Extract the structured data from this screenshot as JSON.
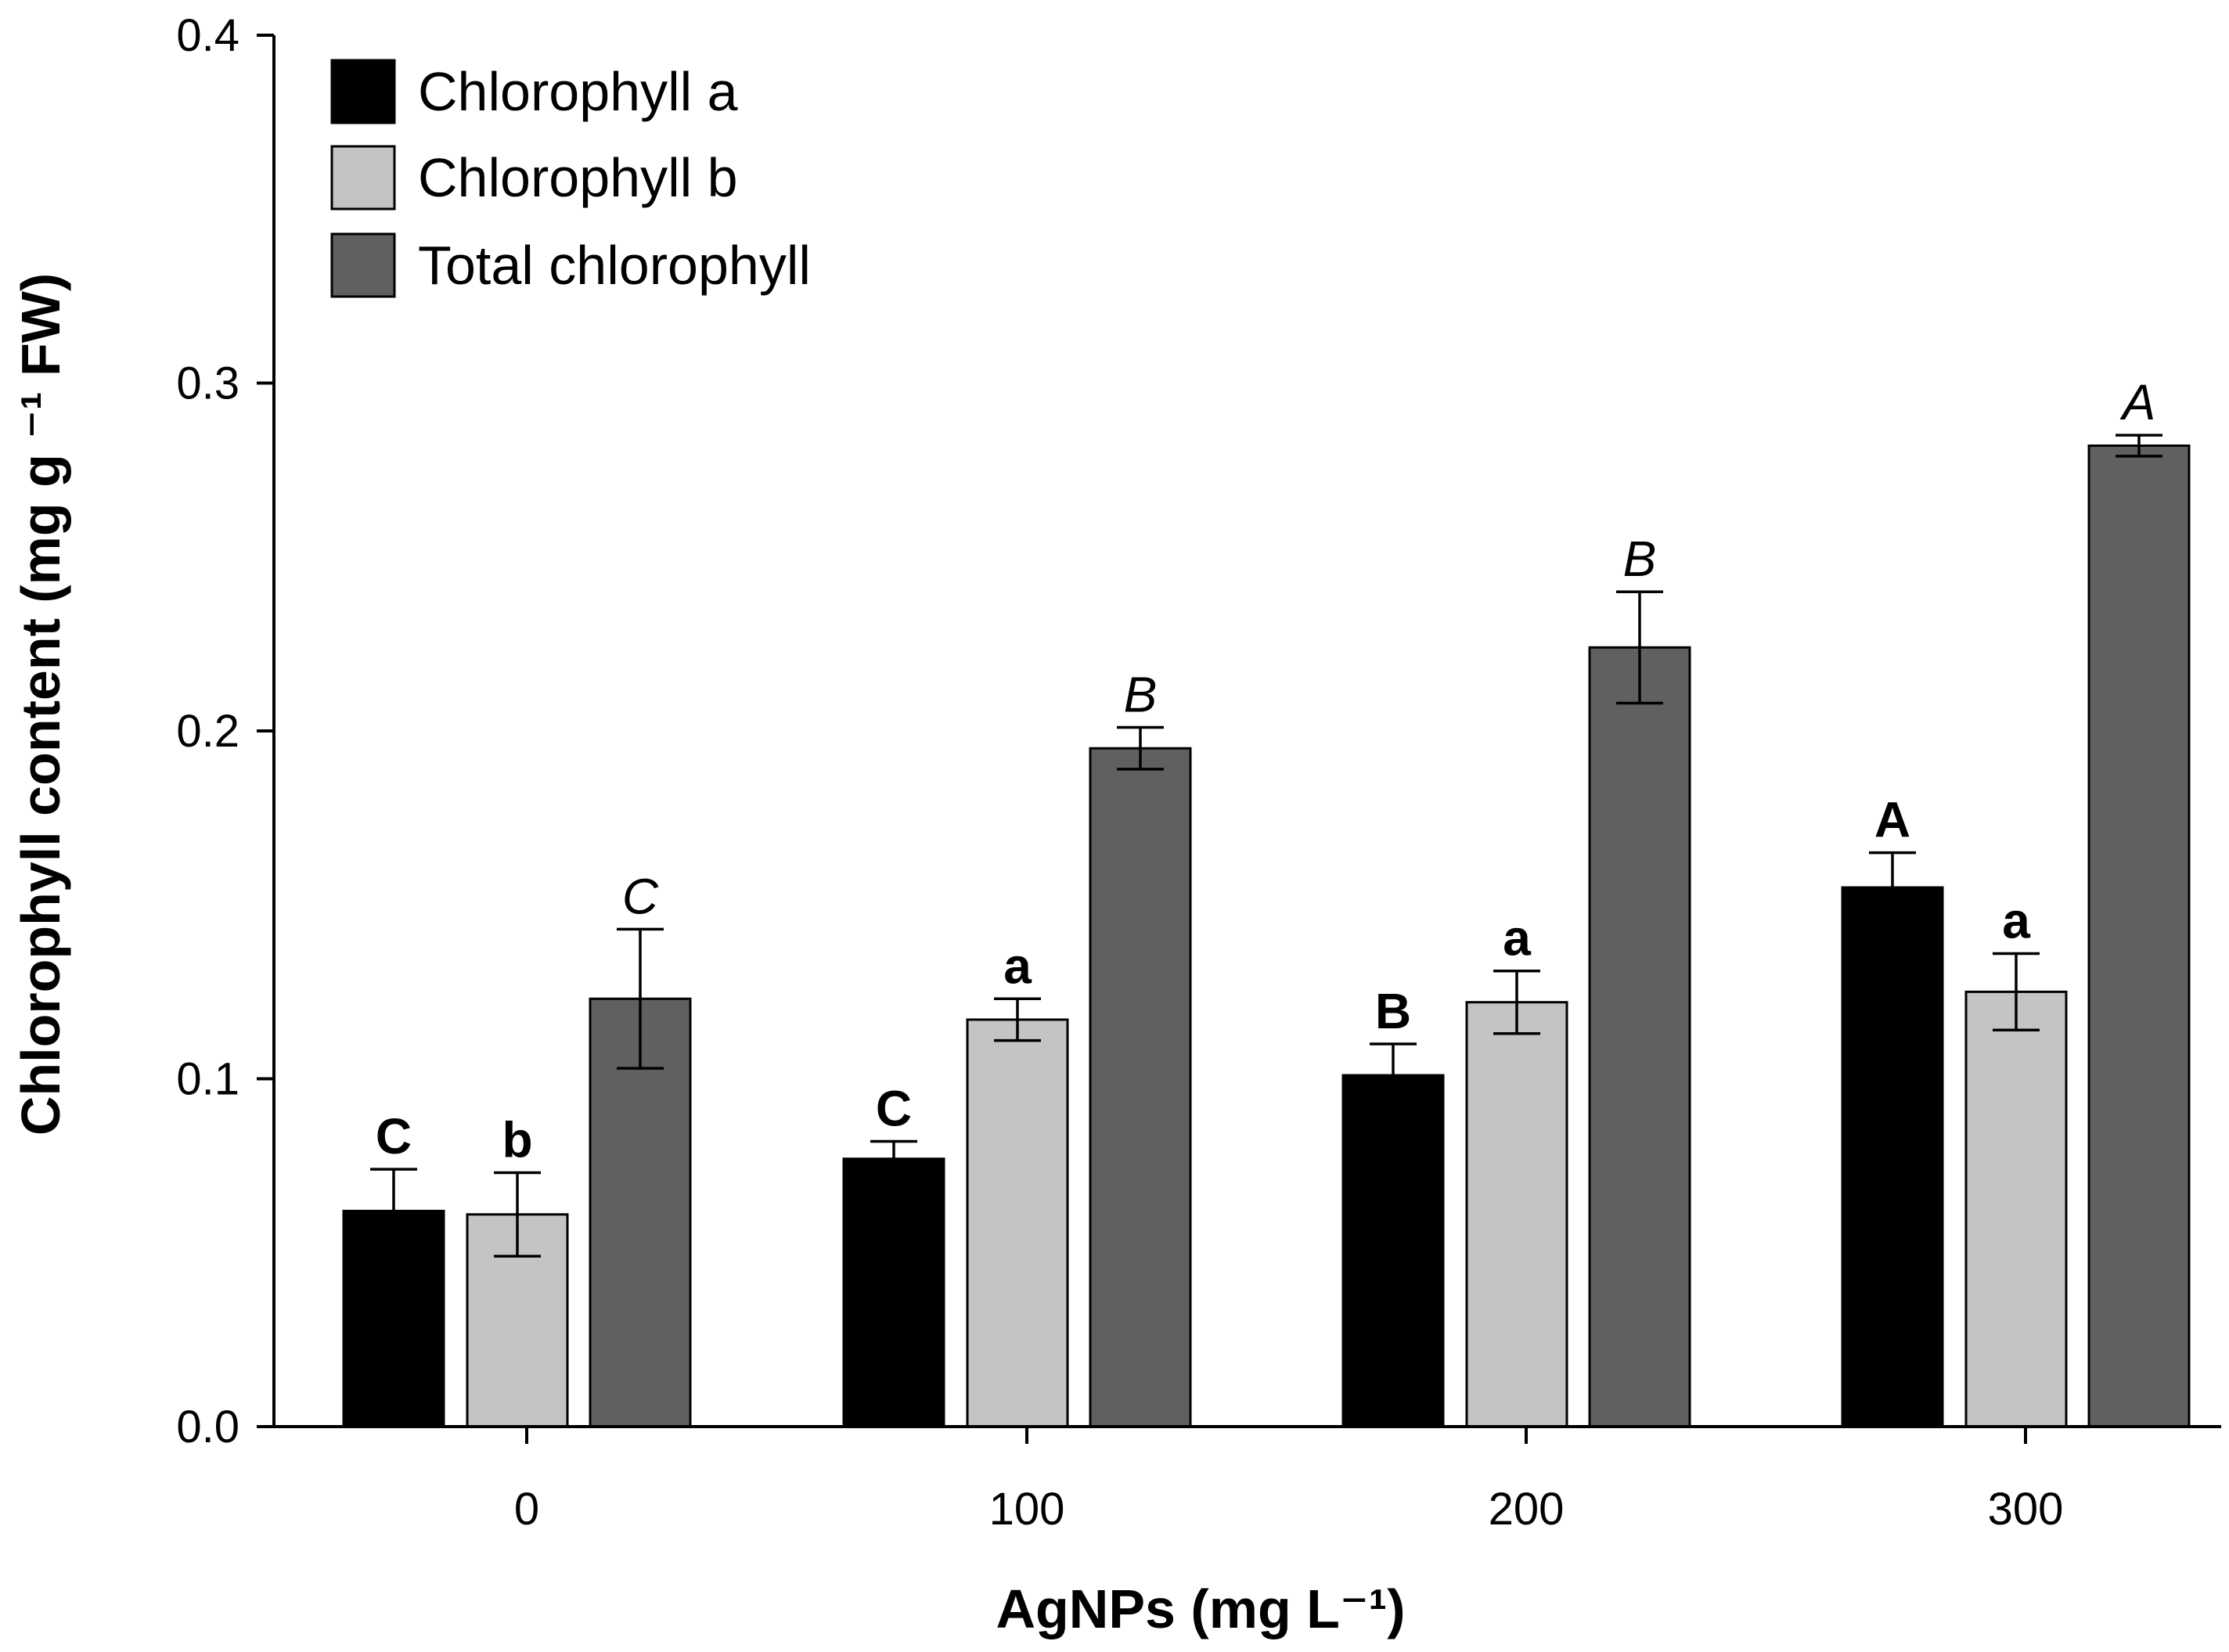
{
  "chart_data": {
    "type": "bar",
    "title": "",
    "xlabel": "AgNPs (mg L⁻¹)",
    "ylabel": "Chlorophyll content (mg g ⁻¹ FW)",
    "ylim": [
      0,
      0.4
    ],
    "yticks": [
      "0.0",
      "0.1",
      "0.2",
      "0.3",
      "0.4"
    ],
    "ytick_values": [
      0.0,
      0.1,
      0.2,
      0.3,
      0.4
    ],
    "categories": [
      "0",
      "100",
      "200",
      "300"
    ],
    "grid": false,
    "legend_position": "top-left",
    "series": [
      {
        "name": "Chlorophyll a",
        "color": "#000000",
        "values": [
          0.062,
          0.077,
          0.101,
          0.155
        ],
        "errors": [
          0.012,
          0.005,
          0.009,
          0.01
        ],
        "labels": [
          "C",
          "C",
          "B",
          "A"
        ],
        "label_style": "bold"
      },
      {
        "name": "Chlorophyll b",
        "color": "#c4c4c4",
        "values": [
          0.061,
          0.117,
          0.122,
          0.125
        ],
        "errors": [
          0.012,
          0.006,
          0.009,
          0.011
        ],
        "labels": [
          "b",
          "a",
          "a",
          "a"
        ],
        "label_style": "bold"
      },
      {
        "name": "Total chlorophyll",
        "color": "#606060",
        "values": [
          0.123,
          0.195,
          0.224,
          0.282
        ],
        "errors": [
          0.02,
          0.006,
          0.016,
          0.003
        ],
        "labels": [
          "C",
          "B",
          "B",
          "A"
        ],
        "label_style": "italic"
      }
    ]
  }
}
